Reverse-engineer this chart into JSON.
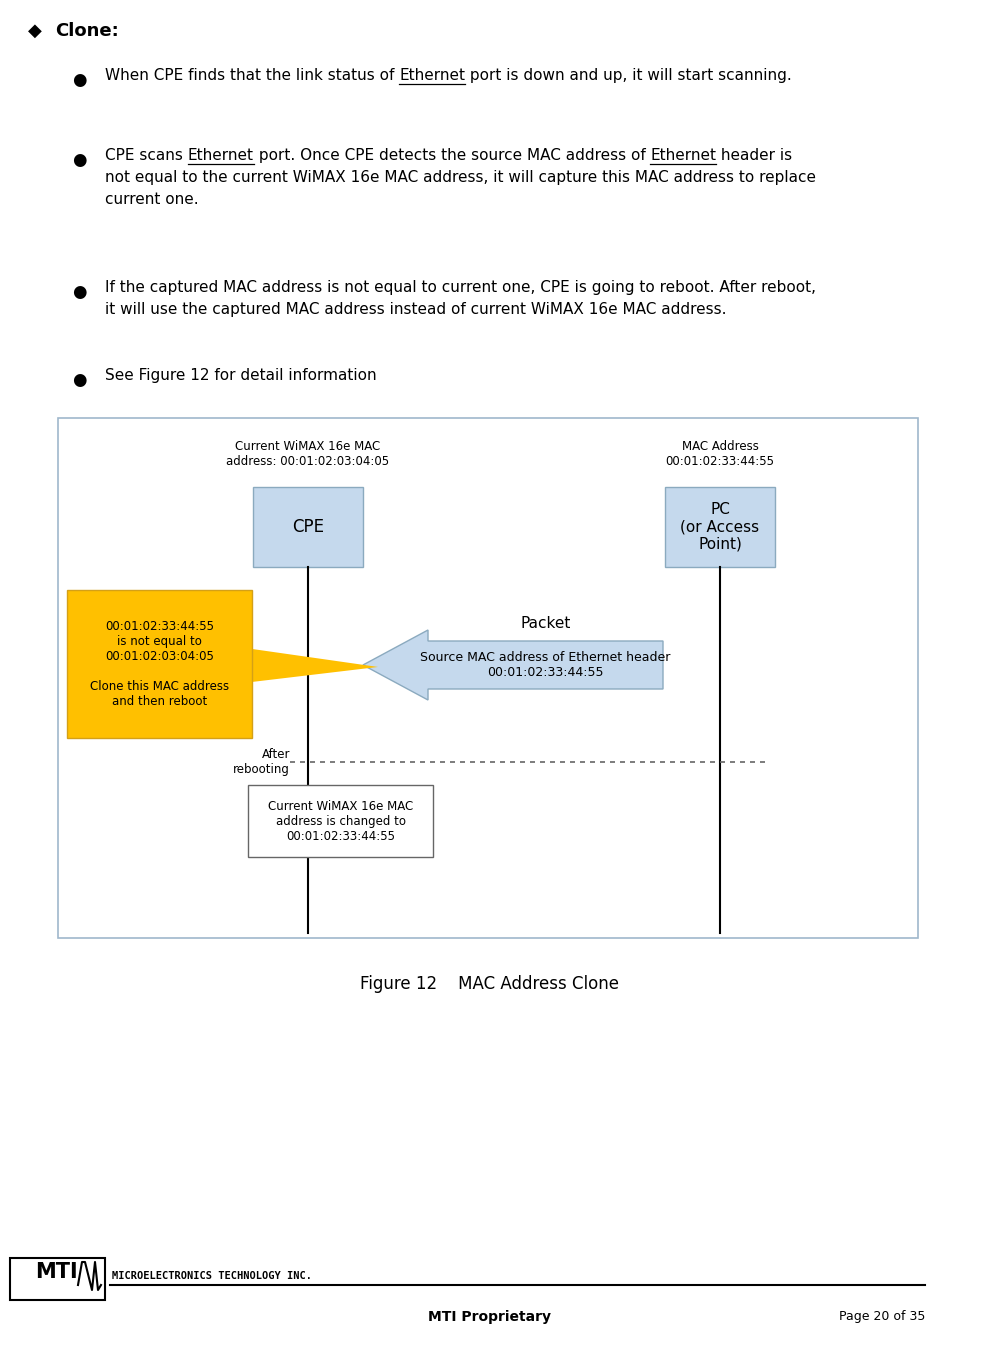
{
  "page_bg": "#ffffff",
  "title_bullet": "◆",
  "title_text": "Clone:",
  "diagram": {
    "box_color": "#c5d9ed",
    "box_border": "#8baabf",
    "diagram_border": "#a0b8cc",
    "cpe_label": "CPE",
    "cpe_mac_label": "Current WiMAX 16e MAC\naddress: 00:01:02:03:04:05",
    "pc_label": "PC\n(or Access\nPoint)",
    "pc_mac_label": "MAC Address\n00:01:02:33:44:55",
    "arrow_color": "#c5d9ed",
    "arrow_border": "#8baabf",
    "packet_label": "Packet",
    "packet_sublabel": "Source MAC address of Ethernet header\n00:01:02:33:44:55",
    "yellow_box_color": "#ffc000",
    "yellow_box_text": "00:01:02:33:44:55\nis not equal to\n00:01:02:03:04:05\n\nClone this MAC address\nand then reboot",
    "after_reboot_label": "After\nrebooting",
    "bottom_box_text": "Current WiMAX 16e MAC\naddress is changed to\n00:01:02:33:44:55"
  },
  "figure_caption": "Figure 12    MAC Address Clone",
  "footer_center": "MTI Proprietary",
  "footer_right": "Page 20 of 35",
  "footer_logo_text": "MICROELECTRONICS TECHNOLOGY INC.",
  "b1_pre": "When CPE finds that the link status of ",
  "b1_und": "Ethernet",
  "b1_post": " port is down and up, it will start scanning.",
  "b2_pre": "CPE scans ",
  "b2_und1": "Ethernet",
  "b2_mid": " port. Once CPE detects the source MAC address of ",
  "b2_und2": "Ethernet",
  "b2_post": " header is",
  "b2_line2": "not equal to the current WiMAX 16e MAC address, it will capture this MAC address to replace",
  "b2_line3": "current one.",
  "b3_line1": "If the captured MAC address is not equal to current one, CPE is going to reboot. After reboot,",
  "b3_line2": "it will use the captured MAC address instead of current WiMAX 16e MAC address.",
  "b4": "See Figure 12 for detail information"
}
